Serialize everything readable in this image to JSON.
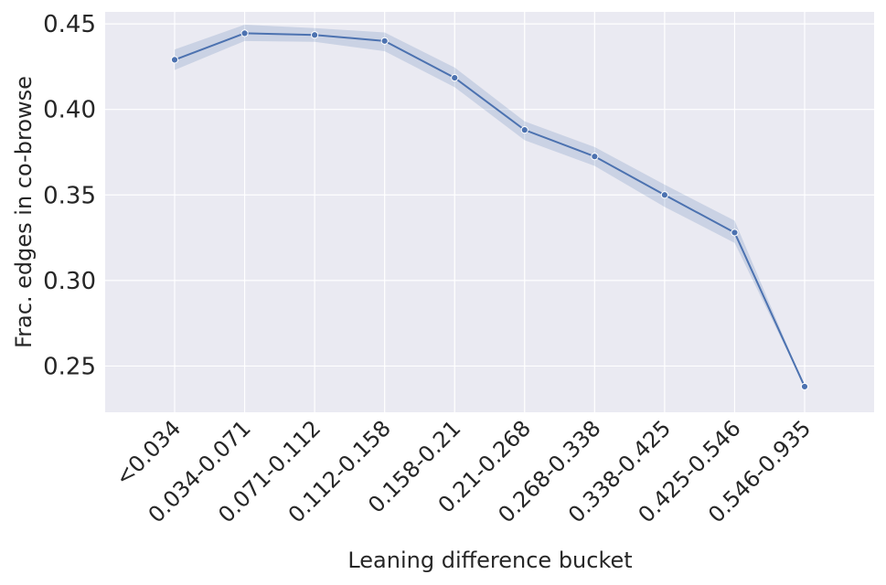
{
  "chart_data": {
    "type": "line",
    "xlabel": "Leaning difference bucket",
    "ylabel": "Frac. edges in co-browse",
    "categories": [
      "<0.034",
      "0.034-0.071",
      "0.071-0.112",
      "0.112-0.158",
      "0.158-0.21",
      "0.21-0.268",
      "0.268-0.338",
      "0.338-0.425",
      "0.425-0.546",
      "0.546-0.935"
    ],
    "series": [
      {
        "values": [
          0.429,
          0.4445,
          0.4435,
          0.44,
          0.4185,
          0.388,
          0.3725,
          0.35,
          0.328,
          0.238
        ],
        "ci_lower": [
          0.423,
          0.44,
          0.4395,
          0.434,
          0.413,
          0.382,
          0.367,
          0.343,
          0.322,
          0.238
        ],
        "ci_upper": [
          0.435,
          0.4495,
          0.4475,
          0.445,
          0.4245,
          0.393,
          0.378,
          0.356,
          0.335,
          0.238
        ]
      }
    ],
    "yticks": [
      "0.25",
      "0.30",
      "0.35",
      "0.40",
      "0.45"
    ],
    "ylim": [
      0.223,
      0.457
    ],
    "grid": true,
    "colors": {
      "line": "#4c72b0",
      "band": "#4c72b0",
      "background": "#eaeaf2",
      "grid": "#ffffff"
    }
  }
}
